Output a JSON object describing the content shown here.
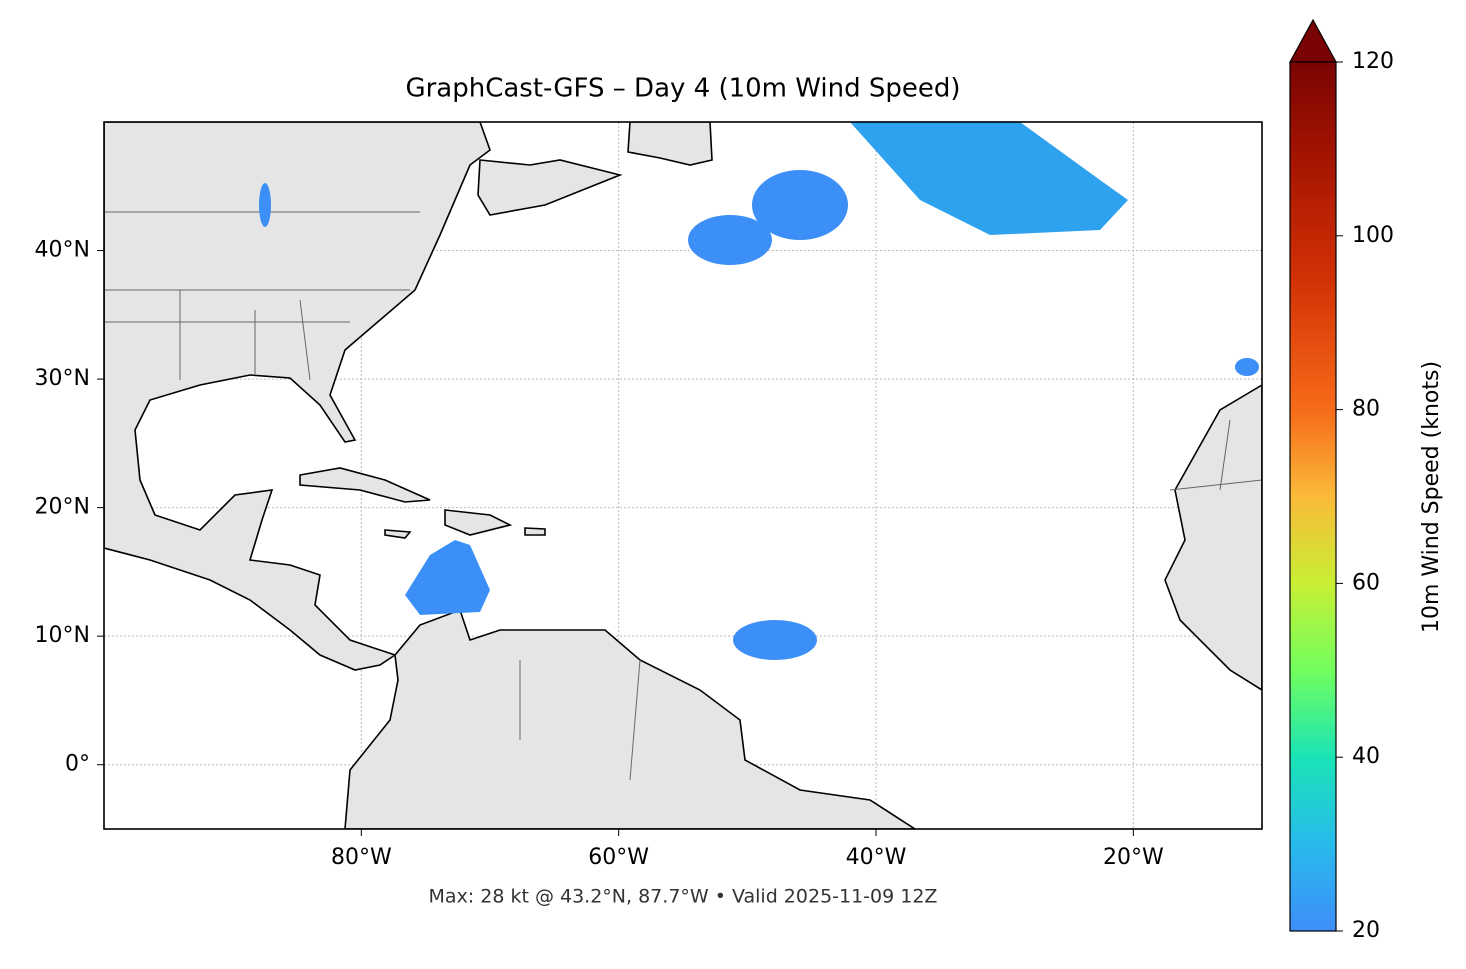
{
  "chart_data": {
    "type": "map",
    "title": "GraphCast-GFS – Day 4 (10m Wind Speed)",
    "footnote": "Max: 28 kt @ 43.2°N, 87.7°W • Valid 2025-11-09 12Z",
    "xlim": [
      -100,
      -10
    ],
    "ylim": [
      -5,
      50
    ],
    "xticks": [
      {
        "value": -80,
        "label": "80°W"
      },
      {
        "value": -60,
        "label": "60°W"
      },
      {
        "value": -40,
        "label": "40°W"
      },
      {
        "value": -20,
        "label": "20°W"
      }
    ],
    "yticks": [
      {
        "value": 0,
        "label": "0°"
      },
      {
        "value": 10,
        "label": "10°N"
      },
      {
        "value": 20,
        "label": "20°N"
      },
      {
        "value": 30,
        "label": "30°N"
      },
      {
        "value": 40,
        "label": "40°N"
      }
    ],
    "grid": true,
    "colorbar": {
      "label": "10m Wind Speed (knots)",
      "lim": [
        20,
        120
      ],
      "ticks": [
        20,
        40,
        60,
        80,
        100,
        120
      ]
    }
  }
}
